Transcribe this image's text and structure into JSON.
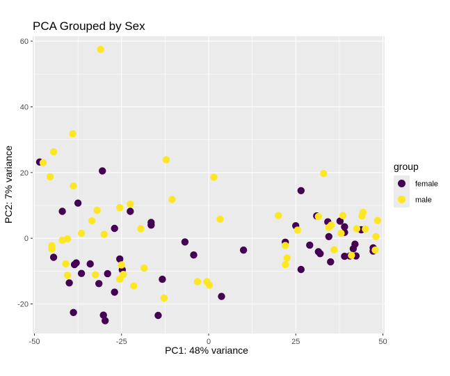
{
  "chart_data": {
    "type": "scatter",
    "title": "PCA Grouped by Sex",
    "xlabel": "PC1: 48% variance",
    "ylabel": "PC2: 7% variance",
    "xlim": [
      -50.5,
      50.5
    ],
    "ylim": [
      -29,
      61.5
    ],
    "x_ticks": [
      -50,
      -25,
      0,
      25,
      50
    ],
    "x_tick_labels": [
      "-50",
      "-25",
      "0",
      "25",
      "50"
    ],
    "y_ticks": [
      -20,
      0,
      20,
      40,
      60
    ],
    "y_tick_labels": [
      "-20",
      "0",
      "20",
      "40",
      "60"
    ],
    "grid": true,
    "legend": {
      "title": "group",
      "placement": "right"
    },
    "colors": {
      "female": "#440154",
      "male": "#fde725",
      "panel": "#ebebeb",
      "grid": "#ffffff"
    },
    "series": [
      {
        "name": "female",
        "color": "#440154",
        "points": [
          [
            -48.5,
            23.2
          ],
          [
            -42,
            8.2
          ],
          [
            -37.5,
            10.7
          ],
          [
            -30.5,
            20.5
          ],
          [
            -22.5,
            8.2
          ],
          [
            -27,
            3
          ],
          [
            -16.5,
            4.8
          ],
          [
            -16.5,
            4
          ],
          [
            -44.5,
            -5.8
          ],
          [
            -38.5,
            -8
          ],
          [
            -38,
            -7.5
          ],
          [
            -34,
            -7.8
          ],
          [
            -36.5,
            -10.7
          ],
          [
            -40,
            -13.6
          ],
          [
            -31.5,
            -13.8
          ],
          [
            -29,
            -10.8
          ],
          [
            -25.5,
            -6.3
          ],
          [
            -24.8,
            -9.6
          ],
          [
            -27,
            -16.4
          ],
          [
            -38.8,
            -22.6
          ],
          [
            -30.2,
            -23.4
          ],
          [
            -29.7,
            -25.1
          ],
          [
            -14.5,
            -23.5
          ],
          [
            -13.3,
            -12.5
          ],
          [
            -6.8,
            -1.1
          ],
          [
            -4.3,
            -5.1
          ],
          [
            3.7,
            -17.7
          ],
          [
            10,
            -3.6
          ],
          [
            22,
            -1.2
          ],
          [
            25,
            3.8
          ],
          [
            26.5,
            14.5
          ],
          [
            26.5,
            -9.5
          ],
          [
            29,
            -2.1
          ],
          [
            31,
            6.8
          ],
          [
            31.5,
            -4.1
          ],
          [
            32,
            -4.7
          ],
          [
            34.2,
            5
          ],
          [
            34.8,
            3.8
          ],
          [
            35,
            -7.2
          ],
          [
            37.7,
            5.2
          ],
          [
            39,
            3.5
          ],
          [
            39,
            1.8
          ],
          [
            39,
            -5.5
          ],
          [
            40.5,
            -5.4
          ],
          [
            41.5,
            -3.2
          ],
          [
            42,
            -1.8
          ],
          [
            42.3,
            -5.4
          ],
          [
            43.8,
            2.6
          ],
          [
            47.2,
            -2.9
          ],
          [
            47.2,
            -3.9
          ],
          [
            34.5,
            0.5
          ]
        ]
      },
      {
        "name": "male",
        "color": "#fde725",
        "points": [
          [
            -47.5,
            23
          ],
          [
            -45.5,
            18.7
          ],
          [
            -44.5,
            26.3
          ],
          [
            -39,
            31.8
          ],
          [
            -38.8,
            15.9
          ],
          [
            -31,
            57.5
          ],
          [
            -12.2,
            23.9
          ],
          [
            -10.5,
            11.8
          ],
          [
            1.5,
            18.6
          ],
          [
            -22.5,
            10.4
          ],
          [
            -25.5,
            9.3
          ],
          [
            -32,
            8.5
          ],
          [
            -33.5,
            5.3
          ],
          [
            -36.5,
            1.5
          ],
          [
            -42,
            -0.6
          ],
          [
            -40.5,
            -0.2
          ],
          [
            -45,
            -2.3
          ],
          [
            -45,
            -3.3
          ],
          [
            -30,
            1.2
          ],
          [
            -19.5,
            2.9
          ],
          [
            -41,
            -7.8
          ],
          [
            -40.5,
            -11.3
          ],
          [
            -32.5,
            -11.1
          ],
          [
            -25,
            -8.1
          ],
          [
            -24.5,
            -11
          ],
          [
            -25.5,
            -12.5
          ],
          [
            -21.5,
            -14.5
          ],
          [
            -18.5,
            -9.1
          ],
          [
            -12.8,
            -18.2
          ],
          [
            -3.2,
            -13.2
          ],
          [
            -0.5,
            -13.2
          ],
          [
            0.2,
            -14.3
          ],
          [
            3.3,
            5.8
          ],
          [
            20,
            6.9
          ],
          [
            22,
            -2.2
          ],
          [
            22.5,
            -6
          ],
          [
            22,
            -8
          ],
          [
            25.5,
            2.5
          ],
          [
            31.5,
            6.6
          ],
          [
            33,
            19.7
          ],
          [
            34.5,
            3.3
          ],
          [
            36,
            -3.5
          ],
          [
            38,
            1.5
          ],
          [
            38.5,
            6.9
          ],
          [
            41,
            -5.2
          ],
          [
            42.5,
            2.9
          ],
          [
            44,
            6.8
          ],
          [
            44.3,
            7.9
          ],
          [
            45,
            2.8
          ],
          [
            47.8,
            -3.6
          ],
          [
            48,
            0.5
          ],
          [
            48.5,
            5.4
          ],
          [
            35.2,
            4
          ]
        ]
      }
    ]
  }
}
